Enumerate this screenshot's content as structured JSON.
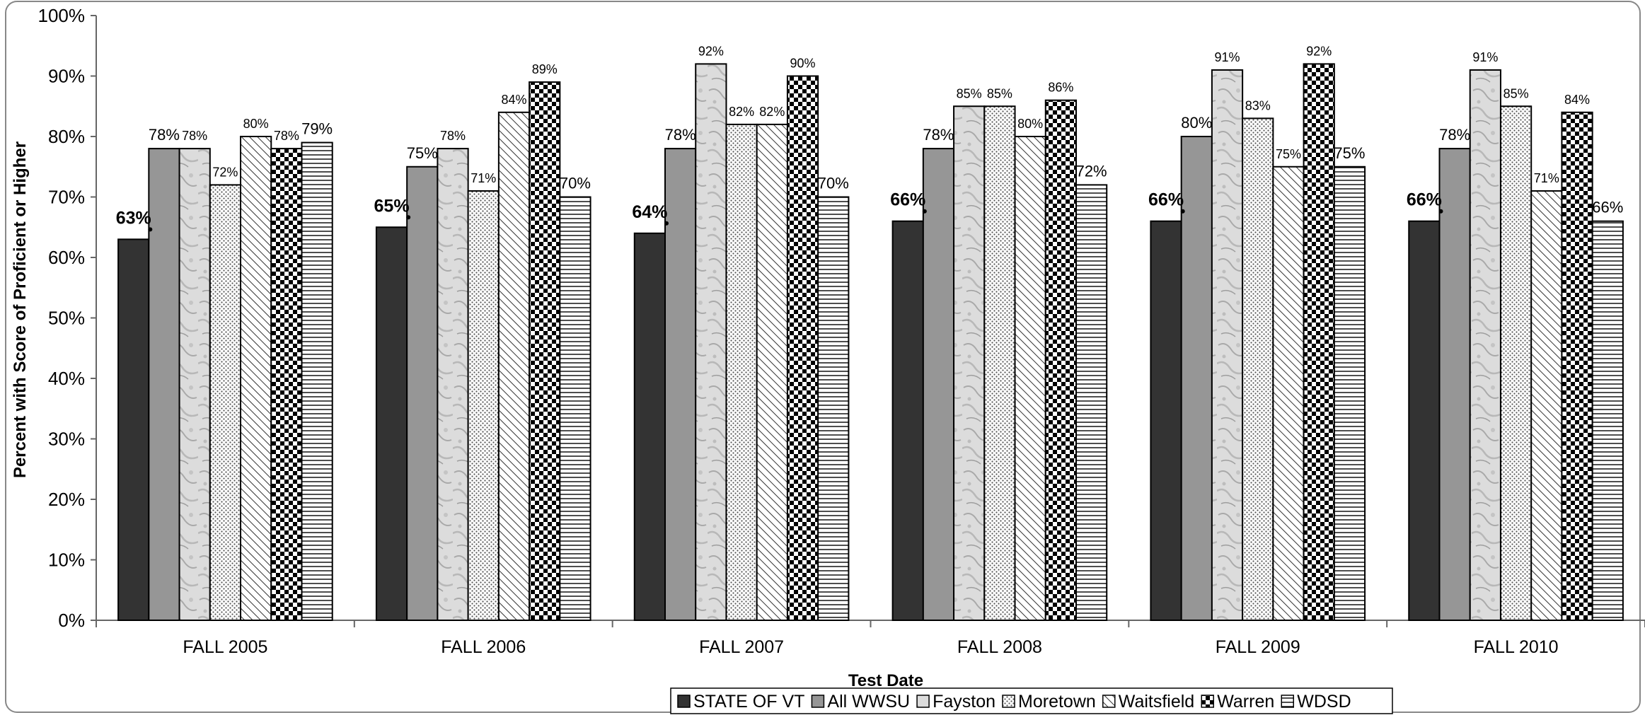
{
  "chart_data": {
    "type": "bar",
    "xlabel": "Test Date",
    "ylabel": "Percent with Score of Proficient or Higher",
    "ylim": [
      0,
      100
    ],
    "yticks": [
      "0%",
      "10%",
      "20%",
      "30%",
      "40%",
      "50%",
      "60%",
      "70%",
      "80%",
      "90%",
      "100%"
    ],
    "categories": [
      "FALL 2005",
      "FALL 2006",
      "FALL 2007",
      "FALL 2008",
      "FALL 2009",
      "FALL 2010"
    ],
    "series": [
      {
        "name": "STATE OF VT",
        "values": [
          63,
          65,
          64,
          66,
          66,
          66
        ],
        "labels": [
          "63%",
          "65%",
          "64%",
          "66%",
          "66%",
          "66%"
        ],
        "fill": "solid-dark",
        "color": "#333333"
      },
      {
        "name": "All WWSU",
        "values": [
          78,
          75,
          78,
          78,
          80,
          78
        ],
        "labels": [
          "78%",
          "75%",
          "78%",
          "78%",
          "80%",
          "78%"
        ],
        "fill": "solid-gray",
        "color": "#969696"
      },
      {
        "name": "Fayston",
        "values": [
          78,
          78,
          92,
          85,
          91,
          91
        ],
        "labels": [
          "78%",
          "78%",
          "92%",
          "85%",
          "91%",
          "91%"
        ],
        "fill": "marble",
        "color": "#d8d8d8"
      },
      {
        "name": "Moretown",
        "values": [
          72,
          71,
          82,
          85,
          83,
          85
        ],
        "labels": [
          "72%",
          "71%",
          "82%",
          "85%",
          "83%",
          "85%"
        ],
        "fill": "dots",
        "color": "#ffffff"
      },
      {
        "name": "Waitsfield",
        "values": [
          80,
          84,
          82,
          80,
          75,
          71
        ],
        "labels": [
          "80%",
          "84%",
          "82%",
          "80%",
          "75%",
          "71%"
        ],
        "fill": "diagonal",
        "color": "#ffffff"
      },
      {
        "name": "Warren",
        "values": [
          78,
          89,
          90,
          86,
          92,
          84
        ],
        "labels": [
          "78%",
          "89%",
          "90%",
          "86%",
          "92%",
          "84%"
        ],
        "fill": "checker",
        "color": "#000000"
      },
      {
        "name": "WDSD",
        "values": [
          79,
          70,
          70,
          72,
          75,
          66
        ],
        "labels": [
          "79%",
          "70%",
          "70%",
          "72%",
          "75%",
          "66%"
        ],
        "fill": "horizontal",
        "color": "#ffffff"
      }
    ],
    "grid": false,
    "legend_position": "bottom-center"
  }
}
